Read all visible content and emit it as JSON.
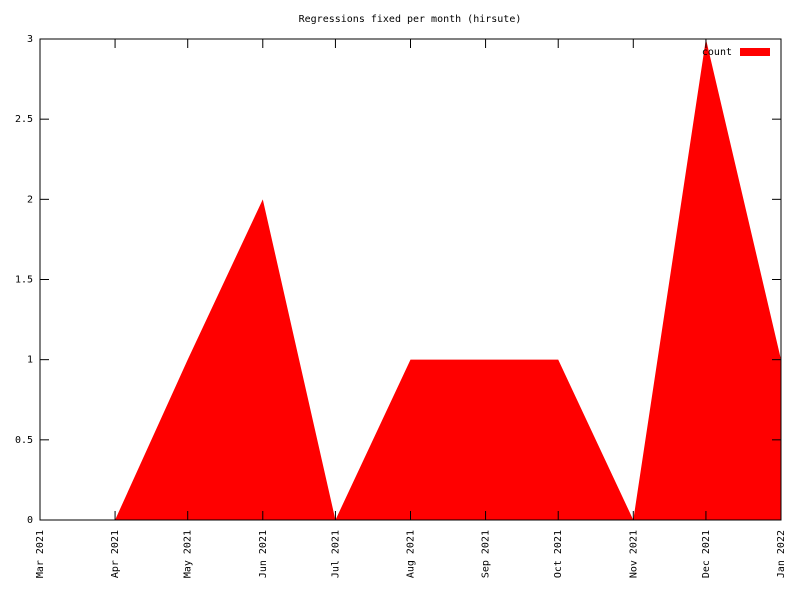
{
  "chart_data": {
    "type": "area",
    "title": "Regressions fixed per month (hirsute)",
    "x": [
      "2021-03",
      "2021-04",
      "2021-05",
      "2021-06",
      "2021-07",
      "2021-08",
      "2021-09",
      "2021-10",
      "2021-11",
      "2021-12",
      "2022-01"
    ],
    "series": [
      {
        "name": "count",
        "color": "#ff0000",
        "values": [
          0,
          0,
          1,
          2,
          0,
          1,
          1,
          1,
          0,
          3,
          1
        ]
      }
    ],
    "xlim": [
      "2021-03",
      "2022-01"
    ],
    "xticks": [
      {
        "value": "2021-03",
        "label": "Mar 2021"
      },
      {
        "value": "2021-04",
        "label": "Apr 2021"
      },
      {
        "value": "2021-05",
        "label": "May 2021"
      },
      {
        "value": "2021-06",
        "label": "Jun 2021"
      },
      {
        "value": "2021-07",
        "label": "Jul 2021"
      },
      {
        "value": "2021-08",
        "label": "Aug 2021"
      },
      {
        "value": "2021-09",
        "label": "Sep 2021"
      },
      {
        "value": "2021-10",
        "label": "Oct 2021"
      },
      {
        "value": "2021-11",
        "label": "Nov 2021"
      },
      {
        "value": "2021-12",
        "label": "Dec 2021"
      },
      {
        "value": "2022-01",
        "label": "Jan 2022"
      }
    ],
    "ylim": [
      0,
      3
    ],
    "yticks": [
      0,
      0.5,
      1,
      1.5,
      2,
      2.5,
      3
    ],
    "legend": "top right"
  }
}
